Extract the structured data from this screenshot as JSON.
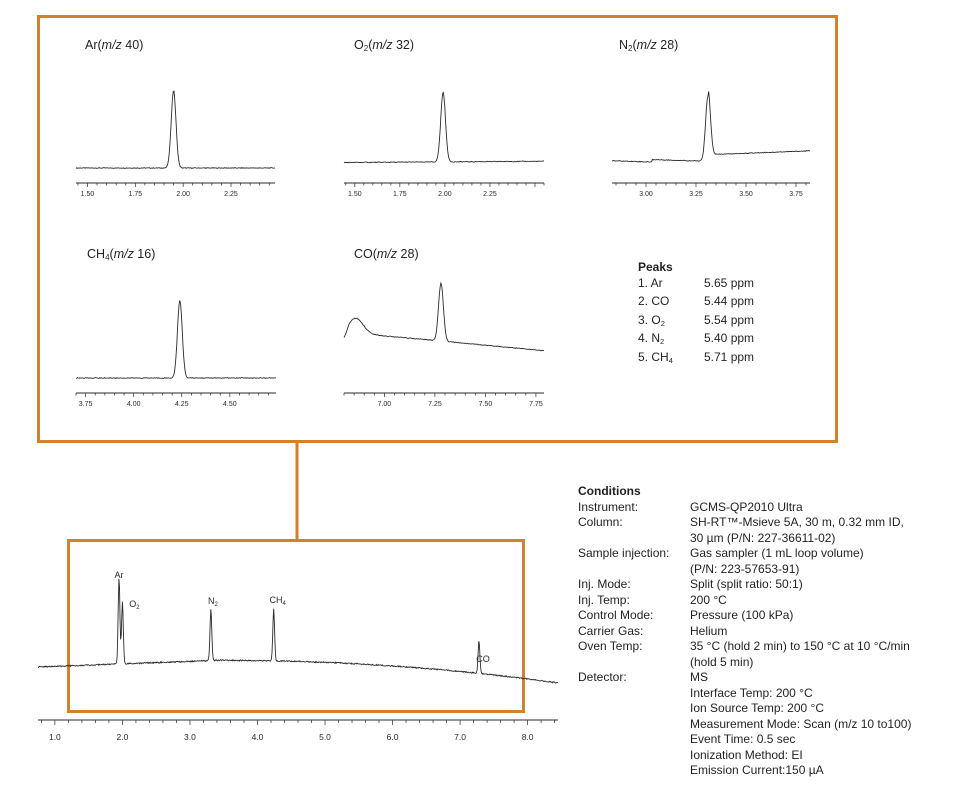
{
  "colors": {
    "frame": "#d2812f",
    "trace": "#2b2b2b",
    "text": "#231f20"
  },
  "insets": [
    {
      "id": "ar",
      "label": {
        "prefix": "Ar",
        "sub": "",
        "mz": "m/z",
        "val": " 40)"
      },
      "xlim": [
        1.44,
        2.48
      ],
      "ticks": [
        "1.50",
        "1.75",
        "2.00",
        "2.25"
      ],
      "chart_data": {
        "type": "line",
        "peak_rt": 1.95,
        "baseline": 0.0,
        "drift": 0.0,
        "peak_height": 1.0
      }
    },
    {
      "id": "o2",
      "label": {
        "prefix": "O",
        "sub": "2",
        "mz": "m/z",
        "val": " 32)"
      },
      "xlim": [
        1.44,
        2.55
      ],
      "ticks": [
        "1.50",
        "1.75",
        "2.00",
        "2.25"
      ],
      "chart_data": {
        "type": "line",
        "peak_rt": 1.99,
        "baseline": 0.04,
        "drift": 0.02,
        "peak_height": 0.9
      }
    },
    {
      "id": "n2",
      "label": {
        "prefix": "N",
        "sub": "2",
        "mz": "m/z",
        "val": " 28)"
      },
      "xlim": [
        2.83,
        3.82
      ],
      "ticks": [
        "3.00",
        "3.25",
        "3.50",
        "3.75"
      ],
      "chart_data": {
        "type": "line",
        "peak_rt": 3.31,
        "baseline": 0.0,
        "drift": 0.18,
        "peak_height": 0.85
      }
    },
    {
      "id": "ch4",
      "label": {
        "prefix": "CH",
        "sub": "4",
        "mz": "m/z",
        "val": " 16)"
      },
      "xlim": [
        3.7,
        4.74
      ],
      "ticks": [
        "3.75",
        "4.00",
        "4.25",
        "4.50"
      ],
      "chart_data": {
        "type": "line",
        "peak_rt": 4.24,
        "baseline": 0.0,
        "drift": 0.0,
        "peak_height": 1.0
      }
    },
    {
      "id": "co",
      "label": {
        "prefix": "CO",
        "sub": "",
        "mz": "m/z",
        "val": " 28)"
      },
      "xlim": [
        6.8,
        7.79
      ],
      "ticks": [
        "7.00",
        "7.25",
        "7.50",
        "7.75"
      ],
      "chart_data": {
        "type": "line",
        "peak_rt": 7.28,
        "baseline": 0.35,
        "drift": -0.32,
        "peak_height": 0.75
      }
    }
  ],
  "peaks": {
    "title": "Peaks",
    "items": [
      {
        "name": "1. Ar",
        "sub": "",
        "conc": "5.65 ppm"
      },
      {
        "name": "2. CO",
        "sub": "",
        "conc": "5.44 ppm"
      },
      {
        "name": "3. O",
        "sub": "2",
        "conc": "5.54 ppm"
      },
      {
        "name": "4. N",
        "sub": "2",
        "conc": "5.40 ppm"
      },
      {
        "name": "5. CH",
        "sub": "4",
        "conc": "5.71 ppm"
      }
    ]
  },
  "main_chart": {
    "xlim": [
      0.75,
      8.45
    ],
    "ticks": [
      "1.0",
      "2.0",
      "3.0",
      "4.0",
      "5.0",
      "6.0",
      "7.0",
      "8.0"
    ],
    "peak_labels": [
      {
        "text": "Ar",
        "sub": "",
        "rt": 1.95
      },
      {
        "text": "O",
        "sub": "2",
        "rt": 2.0
      },
      {
        "text": "N",
        "sub": "2",
        "rt": 3.31
      },
      {
        "text": "CH",
        "sub": "4",
        "rt": 4.24
      },
      {
        "text": "CO",
        "sub": "",
        "rt": 7.28
      }
    ],
    "chart_data": {
      "type": "line",
      "peaks": [
        {
          "rt": 1.95,
          "height": 0.86
        },
        {
          "rt": 2.0,
          "height": 0.62
        },
        {
          "rt": 3.31,
          "height": 0.52
        },
        {
          "rt": 4.24,
          "height": 0.52
        },
        {
          "rt": 7.28,
          "height": 0.33
        }
      ]
    }
  },
  "conditions": {
    "title": "Conditions",
    "rows": [
      {
        "key": "Instrument:",
        "lines": [
          "GCMS-QP2010 Ultra"
        ]
      },
      {
        "key": "Column:",
        "lines": [
          "SH-RT™-Msieve 5A, 30 m, 0.32 mm ID,",
          "30 µm (P/N: 227-36611-02)"
        ]
      },
      {
        "key": "Sample injection:",
        "lines": [
          "Gas sampler (1 mL loop volume)",
          "(P/N: 223-57653-91)"
        ]
      },
      {
        "key": "Inj. Mode:",
        "lines": [
          "Split (split ratio: 50:1)"
        ]
      },
      {
        "key": "Inj. Temp:",
        "lines": [
          "200 °C"
        ]
      },
      {
        "key": "Control Mode:",
        "lines": [
          "Pressure (100 kPa)"
        ]
      },
      {
        "key": "Carrier Gas:",
        "lines": [
          "Helium"
        ]
      },
      {
        "key": "Oven Temp:",
        "lines": [
          "35 °C (hold 2 min) to 150 °C at 10 °C/min",
          "(hold 5 min)"
        ]
      },
      {
        "key": "Detector:",
        "lines": [
          "MS",
          "Interface Temp: 200 °C",
          "Ion Source Temp: 200 °C",
          "Measurement Mode: Scan (m/z 10 to100)",
          "Event Time: 0.5 sec",
          "Ionization Method: EI",
          "Emission Current:150 µA"
        ]
      }
    ]
  }
}
